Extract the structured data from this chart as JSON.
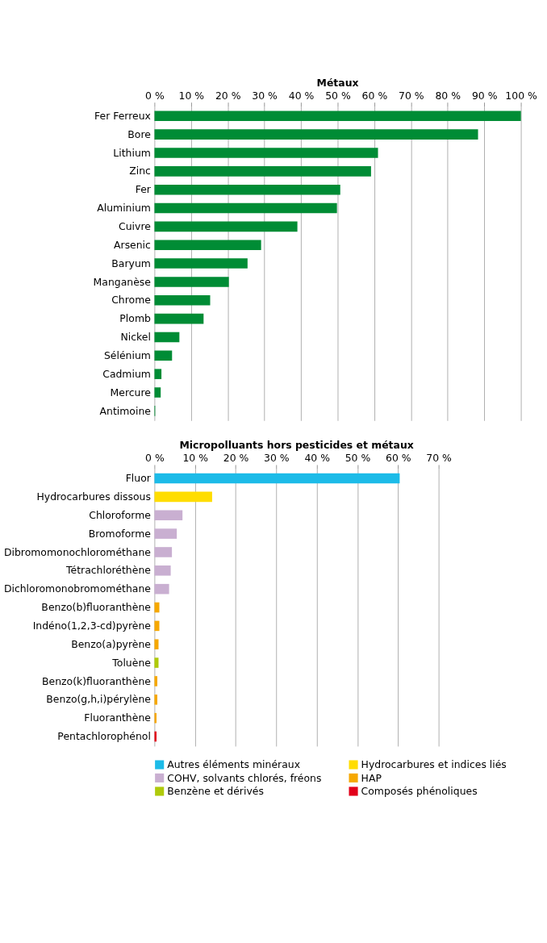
{
  "chart_data": [
    {
      "type": "bar",
      "orientation": "horizontal",
      "title": "Métaux",
      "categories": [
        "Fer Ferreux",
        "Bore",
        "Lithium",
        "Zinc",
        "Fer",
        "Aluminium",
        "Cuivre",
        "Arsenic",
        "Baryum",
        "Manganèse",
        "Chrome",
        "Plomb",
        "Nickel",
        "Sélénium",
        "Cadmium",
        "Mercure",
        "Antimoine"
      ],
      "values": [
        100,
        88.3,
        61.0,
        59.1,
        50.7,
        49.8,
        39.0,
        29.1,
        25.4,
        20.3,
        15.2,
        13.4,
        6.8,
        4.8,
        1.9,
        1.7,
        0.2
      ],
      "color": "#008c35",
      "xlim": [
        0,
        100
      ],
      "xticks": [
        {
          "value": 0,
          "label": "0 %"
        },
        {
          "value": 10,
          "label": "10 %"
        },
        {
          "value": 20,
          "label": "20 %"
        },
        {
          "value": 30,
          "label": "30 %"
        },
        {
          "value": 40,
          "label": "40 %"
        },
        {
          "value": 50,
          "label": "50 %"
        },
        {
          "value": 60,
          "label": "60 %"
        },
        {
          "value": 70,
          "label": "70 %"
        },
        {
          "value": 80,
          "label": "80 %"
        },
        {
          "value": 90,
          "label": "90 %"
        },
        {
          "value": 100,
          "label": "100 %"
        }
      ],
      "grid": "x",
      "legend": false
    },
    {
      "type": "bar",
      "orientation": "horizontal",
      "title": "Micropolluants hors pesticides et métaux",
      "categories": [
        "Fluor",
        "Hydrocarbures dissous",
        "Chloroforme",
        "Bromoforme",
        "Dibromomonochlorométhane",
        "Tétrachloréthène",
        "Dichloromonobromométhane",
        "Benzo(b)fluoranthène",
        "Indéno(1,2,3-cd)pyrène",
        "Benzo(a)pyrène",
        "Toluène",
        "Benzo(k)fluoranthène",
        "Benzo(g,h,i)pérylène",
        "Fluoranthène",
        "Pentachlorophénol"
      ],
      "series": [
        {
          "name": "Autres éléments minéraux",
          "color": "#1cbbe8",
          "values": [
            60.4,
            null,
            null,
            null,
            null,
            null,
            null,
            null,
            null,
            null,
            null,
            null,
            null,
            null,
            null
          ]
        },
        {
          "name": "Hydrocarbures et indices liés",
          "color": "#ffdd00",
          "values": [
            null,
            14.2,
            null,
            null,
            null,
            null,
            null,
            null,
            null,
            null,
            null,
            null,
            null,
            null,
            null
          ]
        },
        {
          "name": "COHV, solvants chlorés, fréons",
          "color": "#c9afd1",
          "values": [
            null,
            null,
            6.9,
            5.5,
            4.3,
            4.0,
            3.6,
            null,
            null,
            null,
            null,
            null,
            null,
            null,
            null
          ]
        },
        {
          "name": "HAP",
          "color": "#f6a800",
          "values": [
            null,
            null,
            null,
            null,
            null,
            null,
            null,
            1.2,
            1.2,
            1.0,
            null,
            0.7,
            0.7,
            0.5,
            null
          ]
        },
        {
          "name": "Benzène et dérivés",
          "color": "#afca0b",
          "values": [
            null,
            null,
            null,
            null,
            null,
            null,
            null,
            null,
            null,
            null,
            1.0,
            null,
            null,
            null,
            null
          ]
        },
        {
          "name": "Composés phénoliques",
          "color": "#e2001a",
          "values": [
            null,
            null,
            null,
            null,
            null,
            null,
            null,
            null,
            null,
            null,
            null,
            null,
            null,
            null,
            0.5
          ]
        }
      ],
      "xlim": [
        0,
        70
      ],
      "xticks": [
        {
          "value": 0,
          "label": "0 %"
        },
        {
          "value": 10,
          "label": "10 %"
        },
        {
          "value": 20,
          "label": "20 %"
        },
        {
          "value": 30,
          "label": "30 %"
        },
        {
          "value": 40,
          "label": "40 %"
        },
        {
          "value": 50,
          "label": "50 %"
        },
        {
          "value": 60,
          "label": "60 %"
        },
        {
          "value": 70,
          "label": "70 %"
        }
      ],
      "grid": "x",
      "legend": "bottom"
    }
  ]
}
